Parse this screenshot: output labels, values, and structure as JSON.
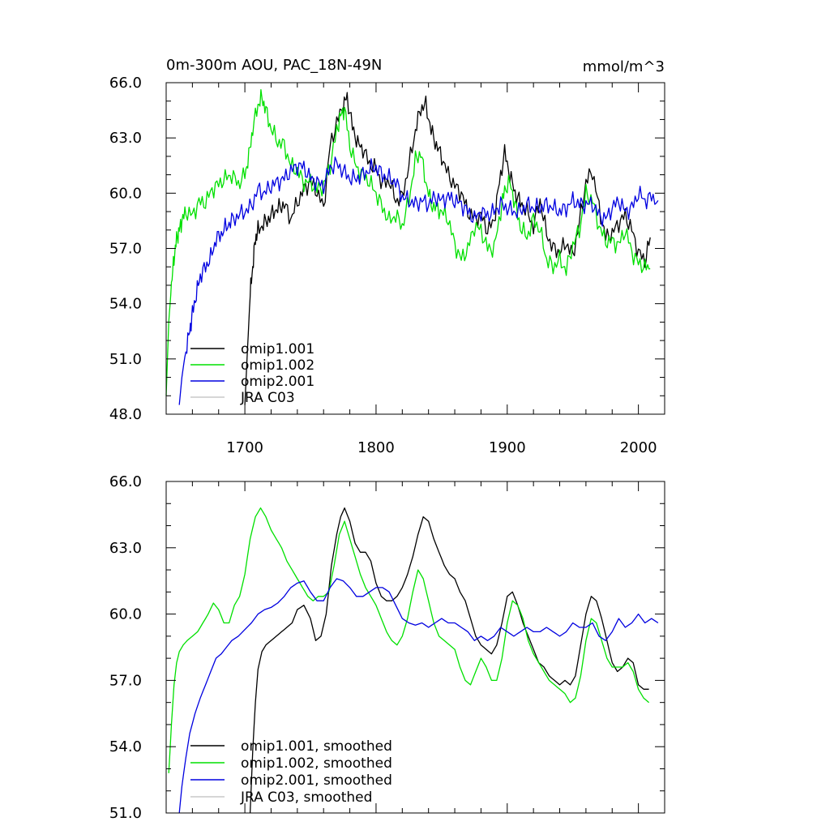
{
  "chart_data": [
    {
      "type": "line",
      "title": "0m-300m AOU, PAC_18N-49N",
      "units": "mmol/m^3",
      "xlim": [
        1640,
        2020
      ],
      "ylim": [
        48,
        66
      ],
      "x_ticks": [
        1700,
        1800,
        1900,
        2000
      ],
      "x_tick_labels": [
        "1700",
        "1800",
        "1900",
        "2000"
      ],
      "y_ticks": [
        48,
        51,
        54,
        57,
        60,
        63,
        66
      ],
      "y_tick_labels": [
        "48.0",
        "51.0",
        "54.0",
        "57.0",
        "60.0",
        "63.0",
        "66.0"
      ],
      "legend_position": "bottom-left",
      "series": [
        {
          "name": "omip1.001",
          "color": "#000000",
          "x": [
            1700,
            1702,
            1704,
            1706,
            1708,
            1710,
            1714,
            1718,
            1722,
            1726,
            1730,
            1735,
            1740,
            1745,
            1750,
            1755,
            1760,
            1765,
            1770,
            1775,
            1778,
            1782,
            1786,
            1790,
            1795,
            1800,
            1805,
            1810,
            1815,
            1820,
            1825,
            1830,
            1834,
            1838,
            1842,
            1846,
            1850,
            1855,
            1860,
            1865,
            1870,
            1875,
            1880,
            1885,
            1890,
            1894,
            1898,
            1902,
            1906,
            1910,
            1915,
            1920,
            1925,
            1930,
            1935,
            1940,
            1945,
            1950,
            1955,
            1960,
            1965,
            1970,
            1975,
            1980,
            1985,
            1990,
            1995,
            2000,
            2005,
            2009
          ],
          "y": [
            48.5,
            51.5,
            54.5,
            56.0,
            57.5,
            58.0,
            58.3,
            58.6,
            59.0,
            59.2,
            59.4,
            58.6,
            59.5,
            60.2,
            60.6,
            60.1,
            59.2,
            62.6,
            63.8,
            64.8,
            65.2,
            63.6,
            62.7,
            62.4,
            61.6,
            61.3,
            60.5,
            60.7,
            59.6,
            59.8,
            61.5,
            63.4,
            64.6,
            64.8,
            63.4,
            62.6,
            62.0,
            61.0,
            60.4,
            60.0,
            59.0,
            58.6,
            58.8,
            58.0,
            58.5,
            60.6,
            62.2,
            61.0,
            60.0,
            59.5,
            59.0,
            58.2,
            59.6,
            57.8,
            57.0,
            56.8,
            57.3,
            56.6,
            58.4,
            60.6,
            61.2,
            59.2,
            57.6,
            57.8,
            58.4,
            58.8,
            58.0,
            56.8,
            56.3,
            57.6
          ]
        },
        {
          "name": "omip1.002",
          "color": "#00e000",
          "x": [
            1640,
            1642,
            1644,
            1646,
            1648,
            1650,
            1652,
            1655,
            1660,
            1665,
            1670,
            1675,
            1680,
            1685,
            1690,
            1695,
            1700,
            1703,
            1706,
            1710,
            1713,
            1716,
            1720,
            1725,
            1730,
            1735,
            1740,
            1745,
            1750,
            1755,
            1760,
            1765,
            1770,
            1773,
            1776,
            1780,
            1785,
            1790,
            1795,
            1800,
            1805,
            1810,
            1815,
            1820,
            1825,
            1830,
            1834,
            1838,
            1842,
            1846,
            1850,
            1855,
            1860,
            1865,
            1870,
            1875,
            1880,
            1885,
            1890,
            1895,
            1898,
            1902,
            1906,
            1910,
            1915,
            1920,
            1925,
            1930,
            1935,
            1940,
            1945,
            1950,
            1955,
            1960,
            1965,
            1970,
            1975,
            1980,
            1985,
            1990,
            1995,
            2000,
            2005,
            2009
          ],
          "y": [
            49.0,
            53.0,
            55.0,
            56.5,
            57.5,
            58.0,
            58.5,
            59.0,
            58.8,
            59.5,
            59.5,
            60.2,
            60.5,
            60.8,
            61.0,
            60.5,
            61.0,
            62.0,
            63.5,
            64.8,
            65.2,
            64.5,
            63.5,
            62.8,
            62.6,
            61.5,
            61.2,
            60.6,
            60.6,
            60.2,
            60.4,
            61.5,
            63.4,
            64.2,
            64.6,
            62.6,
            61.4,
            61.0,
            60.6,
            60.0,
            59.2,
            58.5,
            58.8,
            58.2,
            59.6,
            61.8,
            62.2,
            60.6,
            59.4,
            59.2,
            59.0,
            58.6,
            57.2,
            56.4,
            57.0,
            58.2,
            58.0,
            57.0,
            57.0,
            59.0,
            60.2,
            60.6,
            59.4,
            58.2,
            57.6,
            58.6,
            58.0,
            56.4,
            56.0,
            56.4,
            55.8,
            57.2,
            58.0,
            60.0,
            59.6,
            58.2,
            57.4,
            57.4,
            57.2,
            58.0,
            56.8,
            56.2,
            56.0,
            55.9
          ]
        },
        {
          "name": "omip2.001",
          "color": "#0000e0",
          "x": [
            1650,
            1652,
            1655,
            1658,
            1660,
            1663,
            1666,
            1670,
            1674,
            1678,
            1682,
            1686,
            1690,
            1695,
            1700,
            1705,
            1710,
            1715,
            1720,
            1725,
            1730,
            1735,
            1740,
            1745,
            1750,
            1755,
            1760,
            1765,
            1770,
            1775,
            1780,
            1785,
            1790,
            1795,
            1800,
            1805,
            1810,
            1815,
            1820,
            1825,
            1830,
            1835,
            1840,
            1845,
            1850,
            1855,
            1860,
            1865,
            1870,
            1875,
            1880,
            1885,
            1890,
            1895,
            1900,
            1905,
            1910,
            1915,
            1920,
            1925,
            1930,
            1935,
            1940,
            1945,
            1950,
            1955,
            1960,
            1965,
            1970,
            1975,
            1980,
            1985,
            1990,
            1995,
            2000,
            2005,
            2010,
            2015
          ],
          "y": [
            48.5,
            50.0,
            51.5,
            52.5,
            53.5,
            54.5,
            55.5,
            56.0,
            56.5,
            57.5,
            57.8,
            58.2,
            58.5,
            58.8,
            59.0,
            59.3,
            60.2,
            60.0,
            60.4,
            60.6,
            60.8,
            61.2,
            61.5,
            61.4,
            60.8,
            60.6,
            60.4,
            61.4,
            61.6,
            61.2,
            60.8,
            60.8,
            61.0,
            61.3,
            61.4,
            61.0,
            60.8,
            60.6,
            59.8,
            59.6,
            59.4,
            59.6,
            59.4,
            59.8,
            59.6,
            59.8,
            59.6,
            59.4,
            59.0,
            58.6,
            59.0,
            58.8,
            59.0,
            59.4,
            59.2,
            59.0,
            59.0,
            59.4,
            59.2,
            59.2,
            59.4,
            59.2,
            59.0,
            59.2,
            59.6,
            59.4,
            59.4,
            59.4,
            58.8,
            58.6,
            59.2,
            59.6,
            59.0,
            59.2,
            60.0,
            59.6,
            59.8,
            59.6
          ]
        },
        {
          "name": "JRA C03",
          "color": "#c8c8c8",
          "x": [],
          "y": []
        }
      ]
    },
    {
      "type": "line",
      "xlim": [
        1640,
        2020
      ],
      "ylim": [
        51,
        66
      ],
      "y_ticks": [
        51,
        54,
        57,
        60,
        63,
        66
      ],
      "y_tick_labels": [
        "51.0",
        "54.0",
        "57.0",
        "60.0",
        "63.0",
        "66.0"
      ],
      "legend_position": "bottom-left",
      "series": [
        {
          "name": "omip1.001, smoothed",
          "color": "#000000",
          "x": [
            1704,
            1706,
            1708,
            1710,
            1713,
            1716,
            1720,
            1724,
            1728,
            1732,
            1736,
            1740,
            1745,
            1750,
            1754,
            1758,
            1762,
            1766,
            1770,
            1773,
            1776,
            1780,
            1784,
            1788,
            1792,
            1796,
            1800,
            1804,
            1808,
            1812,
            1816,
            1820,
            1824,
            1828,
            1832,
            1836,
            1840,
            1844,
            1848,
            1852,
            1856,
            1860,
            1864,
            1868,
            1872,
            1876,
            1880,
            1884,
            1888,
            1892,
            1896,
            1900,
            1904,
            1908,
            1912,
            1916,
            1920,
            1924,
            1928,
            1932,
            1936,
            1940,
            1944,
            1948,
            1952,
            1956,
            1960,
            1964,
            1968,
            1972,
            1976,
            1980,
            1984,
            1988,
            1992,
            1996,
            2000,
            2004,
            2008
          ],
          "y": [
            51.0,
            53.8,
            56.0,
            57.5,
            58.3,
            58.6,
            58.8,
            59.0,
            59.2,
            59.4,
            59.6,
            60.2,
            60.4,
            59.8,
            58.8,
            59.0,
            60.0,
            62.2,
            63.6,
            64.4,
            64.8,
            64.2,
            63.2,
            62.8,
            62.8,
            62.4,
            61.4,
            60.8,
            60.6,
            60.6,
            60.8,
            61.2,
            61.8,
            62.6,
            63.6,
            64.4,
            64.2,
            63.4,
            62.8,
            62.2,
            61.8,
            61.6,
            61.0,
            60.6,
            59.8,
            59.0,
            58.6,
            58.4,
            58.2,
            58.6,
            59.6,
            60.8,
            61.0,
            60.4,
            59.6,
            59.0,
            58.4,
            57.8,
            57.6,
            57.2,
            57.0,
            56.8,
            57.0,
            56.8,
            57.2,
            58.6,
            60.0,
            60.8,
            60.6,
            59.8,
            58.8,
            57.8,
            57.4,
            57.6,
            58.0,
            57.8,
            56.8,
            56.6,
            56.6
          ]
        },
        {
          "name": "omip1.002, smoothed",
          "color": "#00e000",
          "x": [
            1642,
            1644,
            1646,
            1648,
            1650,
            1653,
            1656,
            1660,
            1664,
            1668,
            1672,
            1676,
            1680,
            1684,
            1688,
            1692,
            1696,
            1700,
            1704,
            1708,
            1712,
            1716,
            1720,
            1724,
            1728,
            1732,
            1736,
            1740,
            1744,
            1748,
            1752,
            1756,
            1760,
            1764,
            1768,
            1772,
            1776,
            1780,
            1784,
            1788,
            1792,
            1796,
            1800,
            1804,
            1808,
            1812,
            1816,
            1820,
            1824,
            1828,
            1832,
            1836,
            1840,
            1844,
            1848,
            1852,
            1856,
            1860,
            1864,
            1868,
            1872,
            1876,
            1880,
            1884,
            1888,
            1892,
            1896,
            1900,
            1904,
            1908,
            1912,
            1916,
            1920,
            1924,
            1928,
            1932,
            1936,
            1940,
            1944,
            1948,
            1952,
            1956,
            1960,
            1964,
            1968,
            1972,
            1976,
            1980,
            1984,
            1988,
            1992,
            1996,
            2000,
            2004,
            2008
          ],
          "y": [
            52.8,
            55.0,
            56.8,
            57.8,
            58.3,
            58.6,
            58.8,
            59.0,
            59.2,
            59.6,
            60.0,
            60.5,
            60.2,
            59.6,
            59.6,
            60.4,
            60.8,
            61.8,
            63.4,
            64.4,
            64.8,
            64.4,
            63.8,
            63.4,
            63.0,
            62.4,
            62.0,
            61.6,
            61.2,
            60.8,
            60.6,
            60.8,
            60.8,
            61.0,
            62.2,
            63.6,
            64.2,
            63.4,
            62.6,
            61.8,
            61.2,
            60.8,
            60.4,
            59.8,
            59.2,
            58.8,
            58.6,
            59.0,
            59.8,
            61.0,
            62.0,
            61.6,
            60.6,
            59.6,
            59.0,
            58.8,
            58.6,
            58.4,
            57.6,
            57.0,
            56.8,
            57.4,
            58.0,
            57.6,
            57.0,
            57.0,
            58.0,
            59.6,
            60.6,
            60.4,
            59.8,
            58.8,
            58.2,
            57.8,
            57.4,
            57.0,
            56.8,
            56.6,
            56.4,
            56.0,
            56.2,
            57.2,
            58.8,
            59.8,
            59.6,
            58.8,
            58.0,
            57.6,
            57.6,
            57.6,
            57.8,
            57.4,
            56.6,
            56.2,
            56.0
          ]
        },
        {
          "name": "omip2.001, smoothed",
          "color": "#0000e0",
          "x": [
            1650,
            1652,
            1655,
            1658,
            1662,
            1666,
            1670,
            1674,
            1678,
            1682,
            1686,
            1690,
            1695,
            1700,
            1705,
            1710,
            1715,
            1720,
            1725,
            1730,
            1735,
            1740,
            1745,
            1750,
            1755,
            1760,
            1765,
            1770,
            1775,
            1780,
            1785,
            1790,
            1795,
            1800,
            1805,
            1810,
            1815,
            1820,
            1825,
            1830,
            1835,
            1840,
            1845,
            1850,
            1855,
            1860,
            1865,
            1870,
            1875,
            1880,
            1885,
            1890,
            1895,
            1900,
            1905,
            1910,
            1915,
            1920,
            1925,
            1930,
            1935,
            1940,
            1945,
            1950,
            1955,
            1960,
            1965,
            1970,
            1975,
            1980,
            1985,
            1990,
            1995,
            2000,
            2005,
            2010,
            2015
          ],
          "y": [
            51.0,
            52.2,
            53.5,
            54.6,
            55.5,
            56.2,
            56.8,
            57.4,
            58.0,
            58.2,
            58.5,
            58.8,
            59.0,
            59.3,
            59.6,
            60.0,
            60.2,
            60.3,
            60.5,
            60.8,
            61.2,
            61.4,
            61.5,
            61.0,
            60.6,
            60.6,
            61.2,
            61.6,
            61.5,
            61.2,
            60.8,
            60.8,
            61.0,
            61.2,
            61.2,
            61.0,
            60.4,
            59.8,
            59.6,
            59.5,
            59.6,
            59.4,
            59.6,
            59.8,
            59.6,
            59.6,
            59.4,
            59.2,
            58.8,
            59.0,
            58.8,
            59.0,
            59.4,
            59.2,
            59.0,
            59.2,
            59.4,
            59.2,
            59.2,
            59.4,
            59.2,
            59.0,
            59.2,
            59.6,
            59.4,
            59.4,
            59.6,
            59.0,
            58.8,
            59.2,
            59.8,
            59.4,
            59.6,
            60.0,
            59.6,
            59.8,
            59.6
          ]
        },
        {
          "name": "JRA C03, smoothed",
          "color": "#c8c8c8",
          "x": [],
          "y": []
        }
      ]
    }
  ]
}
